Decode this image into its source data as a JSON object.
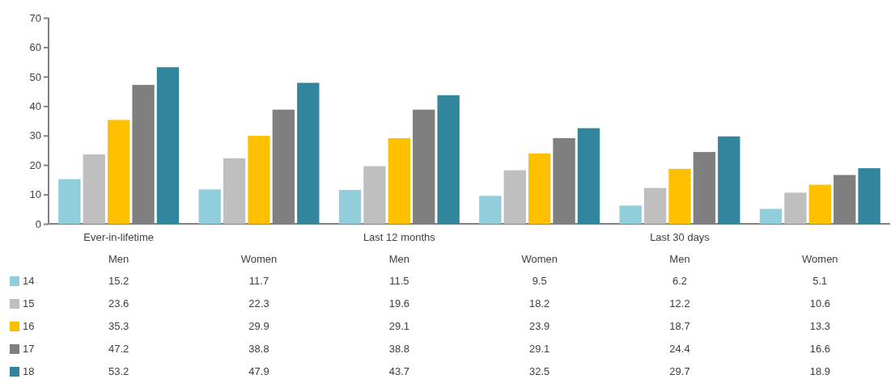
{
  "chart_data": {
    "type": "bar",
    "categories": [
      "Men",
      "Women",
      "Men",
      "Women",
      "Men",
      "Women"
    ],
    "annotations": [
      "Ever-in-lifetime",
      "Last 12 months",
      "Last 30 days"
    ],
    "series": [
      {
        "name": "14",
        "color": "#92cddc",
        "values": [
          15.2,
          11.7,
          11.5,
          9.5,
          6.2,
          5.1
        ]
      },
      {
        "name": "15",
        "color": "#bfbfbf",
        "values": [
          23.6,
          22.3,
          19.6,
          18.2,
          12.2,
          10.6
        ]
      },
      {
        "name": "16",
        "color": "#ffc000",
        "values": [
          35.3,
          29.9,
          29.1,
          23.9,
          18.7,
          13.3
        ]
      },
      {
        "name": "17",
        "color": "#7f7f7f",
        "values": [
          47.2,
          38.8,
          38.8,
          29.1,
          24.4,
          16.6
        ]
      },
      {
        "name": "18",
        "color": "#31859c",
        "values": [
          53.2,
          47.9,
          43.7,
          32.5,
          29.7,
          18.9
        ]
      }
    ],
    "ylim": [
      0,
      70
    ],
    "yticks": [
      0,
      10,
      20,
      30,
      40,
      50,
      60,
      70
    ],
    "data_labels": true,
    "legend": "bottom",
    "grid": false
  }
}
